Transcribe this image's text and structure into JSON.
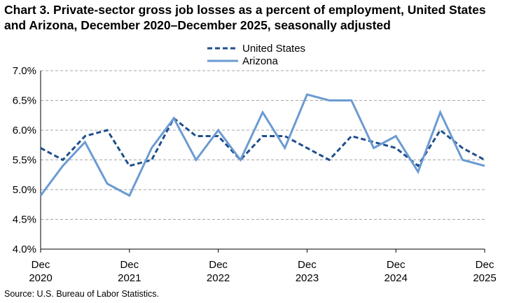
{
  "chart_data": {
    "type": "line",
    "title": "Chart 3. Private-sector gross job losses as a percent of employment, United States and Arizona, December 2020–December 2025, seasonally adjusted",
    "source": "Source: U.S. Bureau of Labor Statistics.",
    "x": [
      "Dec 2020",
      "Mar 2021",
      "Jun 2021",
      "Sep 2021",
      "Dec 2021",
      "Mar 2022",
      "Jun 2022",
      "Sep 2022",
      "Dec 2022",
      "Mar 2023",
      "Jun 2023",
      "Sep 2023",
      "Dec 2023",
      "Mar 2024",
      "Jun 2024",
      "Sep 2024",
      "Dec 2024",
      "Mar 2025",
      "Jun 2025",
      "Sep 2025",
      "Dec 2025"
    ],
    "x_tick_labels": [
      {
        "index": 0,
        "line1": "Dec",
        "line2": "2020"
      },
      {
        "index": 4,
        "line1": "Dec",
        "line2": "2021"
      },
      {
        "index": 8,
        "line1": "Dec",
        "line2": "2022"
      },
      {
        "index": 12,
        "line1": "Dec",
        "line2": "2023"
      },
      {
        "index": 16,
        "line1": "Dec",
        "line2": "2024"
      },
      {
        "index": 20,
        "line1": "Dec",
        "line2": "2025"
      }
    ],
    "y_ticks": [
      4.0,
      4.5,
      5.0,
      5.5,
      6.0,
      6.5,
      7.0
    ],
    "y_tick_labels": [
      "4.0%",
      "4.5%",
      "5.0%",
      "5.5%",
      "6.0%",
      "6.5%",
      "7.0%"
    ],
    "ylim": [
      4.0,
      7.0
    ],
    "grid": "horizontal dashed",
    "legend_position": "top-center",
    "series": [
      {
        "name": "United States",
        "style": "dashed",
        "color": "#1f4e8c",
        "values": [
          5.7,
          5.5,
          5.9,
          6.0,
          5.4,
          5.5,
          6.2,
          5.9,
          5.9,
          5.5,
          5.9,
          5.9,
          5.7,
          5.5,
          5.9,
          5.8,
          5.7,
          5.4,
          6.0,
          5.7,
          5.5
        ]
      },
      {
        "name": "Arizona",
        "style": "solid",
        "color": "#6b9bd2",
        "values": [
          4.9,
          5.4,
          5.8,
          5.1,
          4.9,
          5.7,
          6.2,
          5.5,
          6.0,
          5.5,
          6.3,
          5.7,
          6.6,
          6.5,
          6.5,
          5.7,
          5.9,
          5.3,
          6.3,
          5.5,
          5.4
        ]
      }
    ]
  }
}
